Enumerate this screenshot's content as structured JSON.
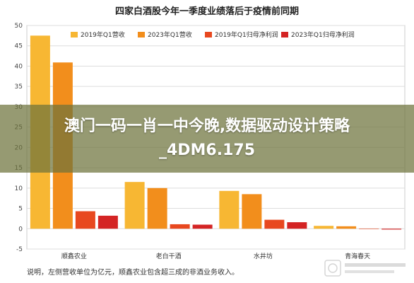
{
  "chart_data": {
    "type": "bar",
    "title": "四家白酒股今年一季度业绩落后于疫情前同期",
    "categories": [
      "顺鑫农业",
      "老白干酒",
      "水井坊",
      "青海春天"
    ],
    "ylim": [
      -5,
      50
    ],
    "yticks": [
      -5,
      0,
      5,
      10,
      15,
      20,
      25,
      30,
      35,
      40,
      45,
      50
    ],
    "grid": true,
    "legend_position": "top",
    "series": [
      {
        "name": "2019年Q1营收",
        "color": "#f7b733",
        "values": [
          47.5,
          11.5,
          9.3,
          0.7
        ]
      },
      {
        "name": "2023年Q1营收",
        "color": "#f28e1c",
        "values": [
          40.9,
          10.0,
          8.5,
          0.6
        ]
      },
      {
        "name": "2019年Q1归母净利润",
        "color": "#e8481f",
        "values": [
          4.3,
          1.1,
          2.2,
          0.0
        ]
      },
      {
        "name": "2023年Q1归母净利润",
        "color": "#d42424",
        "values": [
          3.2,
          1.0,
          1.6,
          -0.2
        ]
      }
    ],
    "note": "说明，左侧营收单位为亿元，顺鑫农业包含超三成的非酒业务收入。"
  },
  "overlay": {
    "banner_text": "澳门一码一肖一中今晚,数据驱动设计策略_4DM6.175",
    "watermark_icon": "watermark-logo-icon"
  },
  "colors": {
    "plot_background": "#ffffff",
    "grid": "#dddddd",
    "banner": "#6e733c"
  }
}
